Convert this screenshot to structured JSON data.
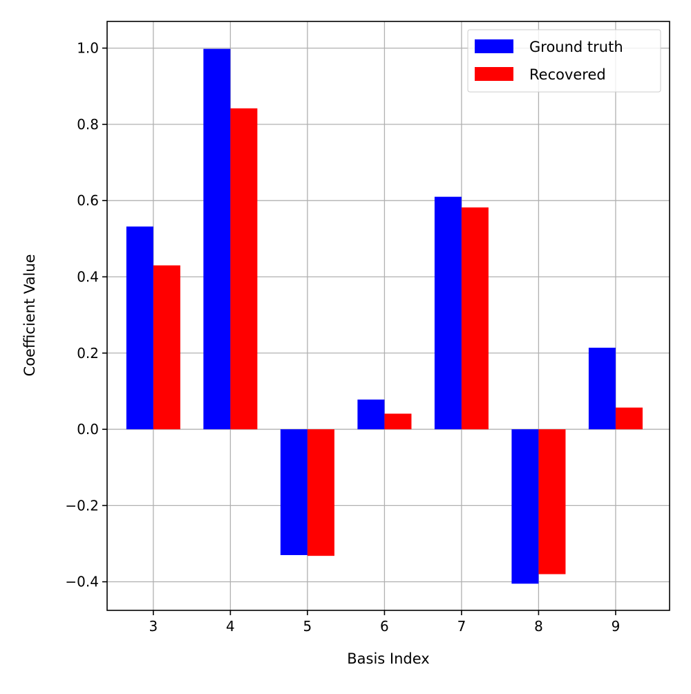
{
  "chart_data": {
    "type": "bar",
    "title": "",
    "xlabel": "Basis Index",
    "ylabel": "Coefficient Value",
    "categories": [
      "3",
      "4",
      "5",
      "6",
      "7",
      "8",
      "9"
    ],
    "ylim": [
      -0.475,
      1.07
    ],
    "yticks": [
      -0.4,
      -0.2,
      0.0,
      0.2,
      0.4,
      0.6,
      0.8,
      1.0
    ],
    "ytick_labels": [
      "−0.4",
      "−0.2",
      "0.0",
      "0.2",
      "0.4",
      "0.6",
      "0.8",
      "1.0"
    ],
    "grid": true,
    "legend": "top-right",
    "series": [
      {
        "name": "Ground truth",
        "color": "#0000ff",
        "values": [
          0.532,
          0.998,
          -0.33,
          0.078,
          0.61,
          -0.405,
          0.214
        ]
      },
      {
        "name": "Recovered",
        "color": "#ff0000",
        "values": [
          0.43,
          0.842,
          -0.332,
          0.041,
          0.582,
          -0.38,
          0.057
        ]
      }
    ]
  }
}
